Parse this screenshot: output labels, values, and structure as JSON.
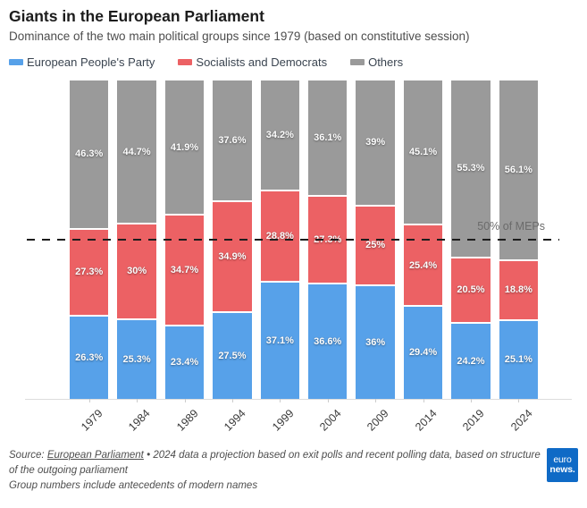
{
  "header": {
    "title": "Giants in the European Parliament",
    "subtitle": "Dominance of the two main political groups since 1979 (based on constitutive session)"
  },
  "chart_data": {
    "type": "bar",
    "subtype": "stacked-percentage",
    "categories": [
      "1979",
      "1984",
      "1989",
      "1994",
      "1999",
      "2004",
      "2009",
      "2014",
      "2019",
      "2024"
    ],
    "series": [
      {
        "id": "epp",
        "name": "European People's Party",
        "color": "#57a1e9",
        "values": [
          26.3,
          25.3,
          23.4,
          27.5,
          37.1,
          36.6,
          36,
          29.4,
          24.2,
          25.1
        ],
        "labels": [
          "26.3%",
          "25.3%",
          "23.4%",
          "27.5%",
          "37.1%",
          "36.6%",
          "36%",
          "29.4%",
          "24.2%",
          "25.1%"
        ]
      },
      {
        "id": "sd",
        "name": "Socialists and Democrats",
        "color": "#ec6164",
        "values": [
          27.3,
          30,
          34.7,
          34.9,
          28.8,
          27.3,
          25,
          25.4,
          20.5,
          18.8
        ],
        "labels": [
          "27.3%",
          "30%",
          "34.7%",
          "34.9%",
          "28.8%",
          "27.3%",
          "25%",
          "25.4%",
          "20.5%",
          "18.8%"
        ]
      },
      {
        "id": "others",
        "name": "Others",
        "color": "#9a9a9a",
        "values": [
          46.3,
          44.7,
          41.9,
          37.6,
          34.2,
          36.1,
          39,
          45.1,
          55.3,
          56.1
        ],
        "labels": [
          "46.3%",
          "44.7%",
          "41.9%",
          "37.6%",
          "34.2%",
          "36.1%",
          "39%",
          "45.1%",
          "55.3%",
          "56.1%"
        ]
      }
    ],
    "stack_order_top_to_bottom": [
      "others",
      "sd",
      "epp"
    ],
    "ylim": [
      0,
      100
    ],
    "grid": false,
    "legend_position": "top",
    "reference_line": {
      "value": 50,
      "label": "50% of MEPs"
    }
  },
  "footer": {
    "source_prefix": "Source:",
    "source_link": "European Parliament",
    "source_rest": "• 2024 data a projection based on exit polls and recent polling data, based on structure of the outgoing parliament",
    "note": "Group numbers include antecedents of modern names",
    "logo_line1": "euro",
    "logo_line2": "news."
  }
}
